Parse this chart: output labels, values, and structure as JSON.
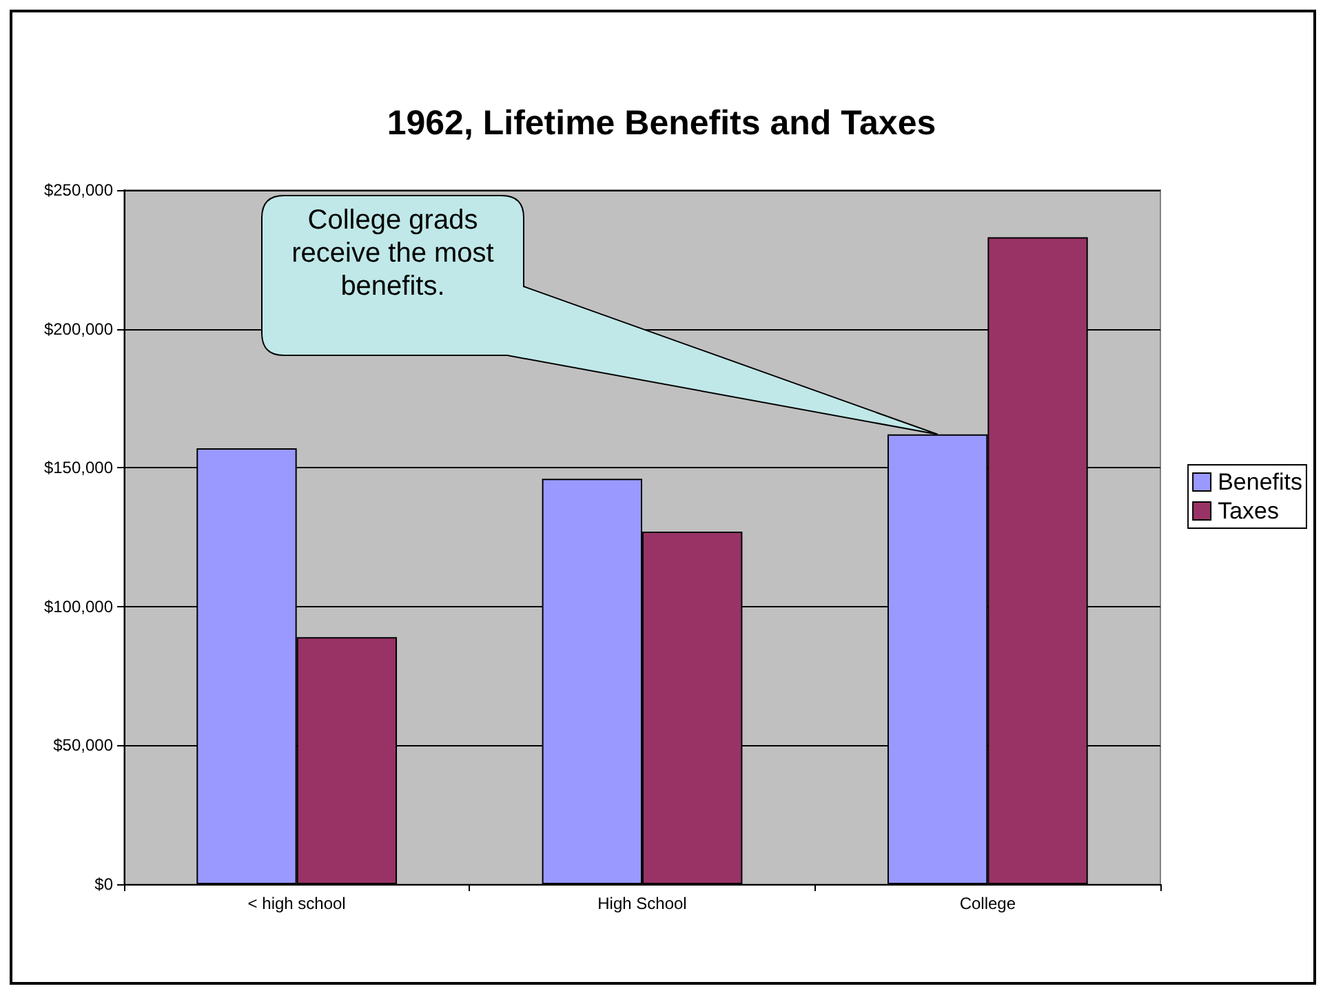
{
  "chart_data": {
    "type": "bar",
    "title": "1962, Lifetime Benefits and Taxes",
    "categories": [
      "< high school",
      "High School",
      "College"
    ],
    "series": [
      {
        "name": "Benefits",
        "color": "#9999ff",
        "values": [
          157000,
          146000,
          162000
        ]
      },
      {
        "name": "Taxes",
        "color": "#993366",
        "values": [
          89000,
          127000,
          233000
        ]
      }
    ],
    "ylim": [
      0,
      250000
    ],
    "yticks": [
      {
        "value": 0,
        "label": "$0"
      },
      {
        "value": 50000,
        "label": "$50,000"
      },
      {
        "value": 100000,
        "label": "$100,000"
      },
      {
        "value": 150000,
        "label": "$150,000"
      },
      {
        "value": 200000,
        "label": "$200,000"
      },
      {
        "value": 250000,
        "label": "$250,000"
      }
    ],
    "grid": "y",
    "legend": "right",
    "annotations": [
      "College grads receive the most benefits."
    ]
  }
}
